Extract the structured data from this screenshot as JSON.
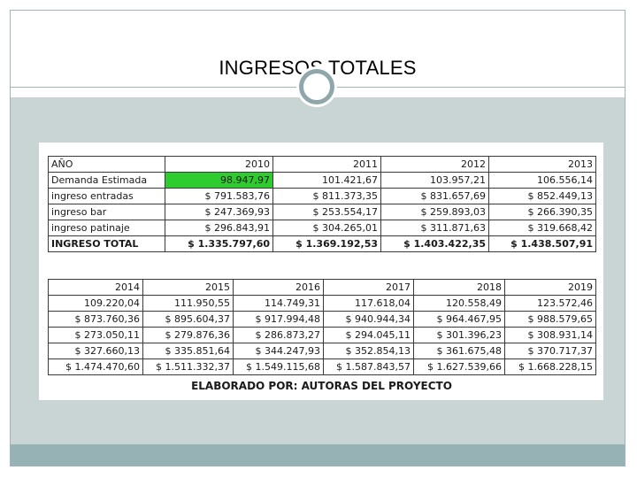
{
  "slide": {
    "title": "INGRESOS TOTALES"
  },
  "table_top": {
    "header": [
      "AÑO",
      "2010",
      "2011",
      "2012",
      "2013"
    ],
    "rows": [
      [
        "Demanda Estimada",
        "98.947,97",
        "101.421,67",
        "103.957,21",
        "106.556,14"
      ],
      [
        "ingreso entradas",
        "$ 791.583,76",
        "$ 811.373,35",
        "$ 831.657,69",
        "$ 852.449,13"
      ],
      [
        "ingreso bar",
        "$ 247.369,93",
        "$ 253.554,17",
        "$ 259.893,03",
        "$ 266.390,35"
      ],
      [
        "ingreso patinaje",
        "$ 296.843,91",
        "$ 304.265,01",
        "$ 311.871,63",
        "$ 319.668,42"
      ],
      [
        "INGRESO TOTAL",
        "$ 1.335.797,60",
        "$ 1.369.192,53",
        "$ 1.403.422,35",
        "$ 1.438.507,91"
      ]
    ],
    "highlight_color": "#2ecc2e"
  },
  "table_bottom": {
    "header": [
      "2014",
      "2015",
      "2016",
      "2017",
      "2018",
      "2019"
    ],
    "rows": [
      [
        "109.220,04",
        "111.950,55",
        "114.749,31",
        "117.618,04",
        "120.558,49",
        "123.572,46"
      ],
      [
        "$ 873.760,36",
        "$ 895.604,37",
        "$ 917.994,48",
        "$ 940.944,34",
        "$ 964.467,95",
        "$ 988.579,65"
      ],
      [
        "$ 273.050,11",
        "$ 279.876,36",
        "$ 286.873,27",
        "$ 294.045,11",
        "$ 301.396,23",
        "$ 308.931,14"
      ],
      [
        "$ 327.660,13",
        "$ 335.851,64",
        "$ 344.247,93",
        "$ 352.854,13",
        "$ 361.675,48",
        "$ 370.717,37"
      ],
      [
        "$ 1.474.470,60",
        "$ 1.511.332,37",
        "$ 1.549.115,68",
        "$ 1.587.843,57",
        "$ 1.627.539,66",
        "$ 1.668.228,15"
      ]
    ]
  },
  "footer": {
    "text": "ELABORADO POR: AUTORAS DEL PROYECTO"
  },
  "colors": {
    "accent": "#97b2b4",
    "panel": "#c9d4d4"
  }
}
